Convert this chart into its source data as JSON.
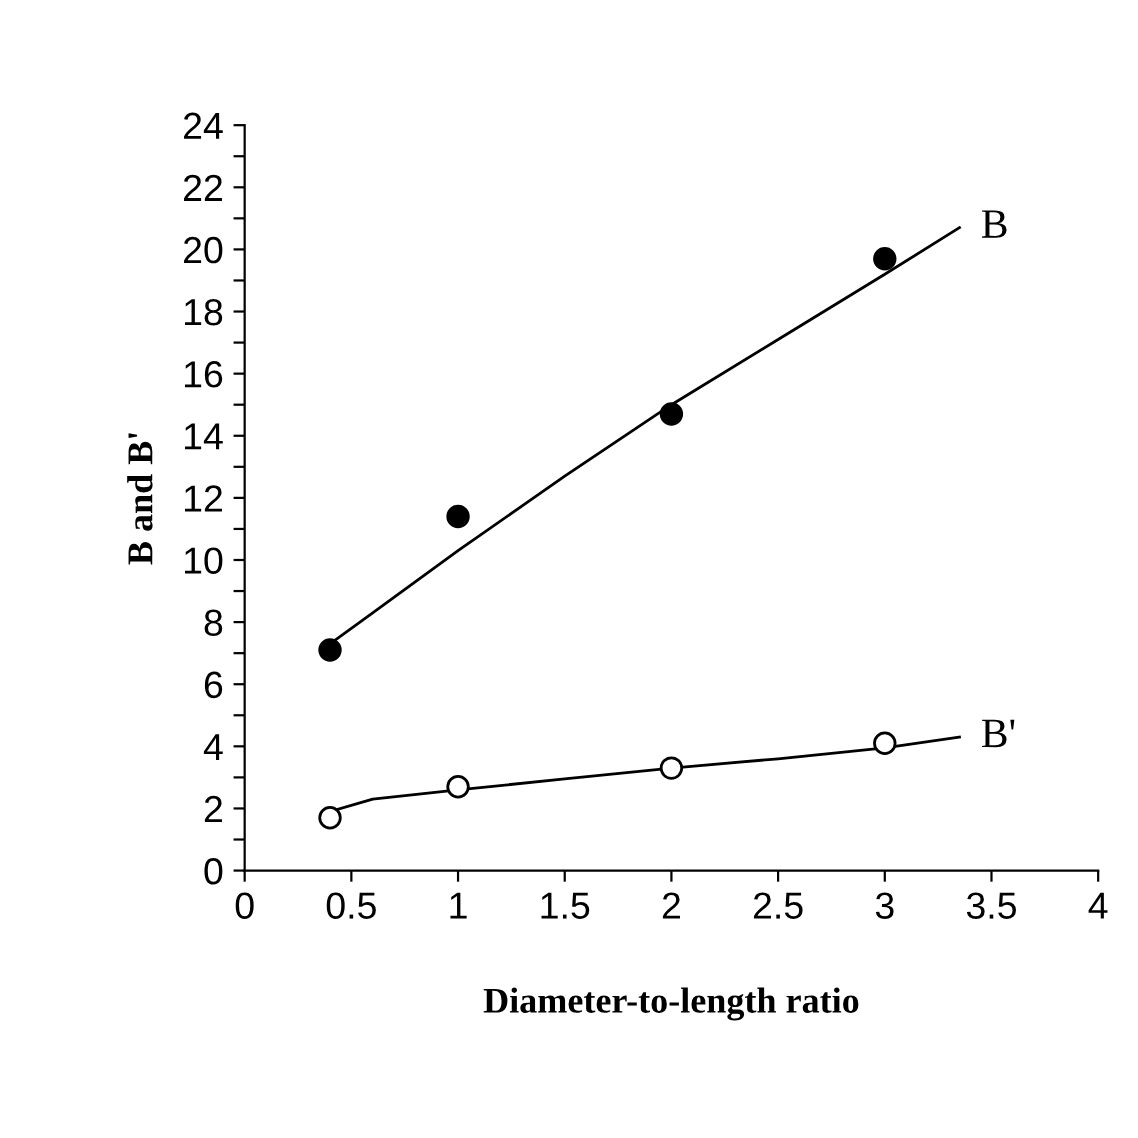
{
  "chart_data": {
    "type": "scatter",
    "xlabel": "Diameter-to-length ratio",
    "ylabel": "B and B'",
    "xlim": [
      0,
      4
    ],
    "xticks": [
      0,
      0.5,
      1,
      1.5,
      2,
      2.5,
      3,
      3.5,
      4
    ],
    "ylim": [
      0,
      24
    ],
    "yticks": [
      0,
      {
        "value": 1,
        "label": null
      },
      2,
      {
        "value": 3,
        "label": null
      },
      4,
      {
        "value": 5,
        "label": null
      },
      6,
      {
        "value": 7,
        "label": null
      },
      8,
      {
        "value": 9,
        "label": null
      },
      10,
      {
        "value": 11,
        "label": null
      },
      12,
      {
        "value": 13,
        "label": null
      },
      14,
      {
        "value": 15,
        "label": null
      },
      16,
      {
        "value": 17,
        "label": null
      },
      18,
      {
        "value": 19,
        "label": null
      },
      20,
      {
        "value": 21,
        "label": null
      },
      22,
      {
        "value": 23,
        "label": null
      },
      24
    ],
    "grid": false,
    "legend": false,
    "series": [
      {
        "color": "#000000",
        "marker": "circle",
        "x": [
          0.4,
          1,
          2,
          3
        ],
        "values": [
          7.1,
          11.4,
          14.7,
          19.7
        ]
      },
      {
        "color": "#ffffff",
        "marker": "circle",
        "x": [
          0.4,
          1,
          2,
          3
        ],
        "values": [
          1.7,
          2.7,
          3.3,
          4.1
        ]
      },
      {
        "type": "line",
        "name": "B",
        "color": "#000000",
        "marker": "none",
        "x": [
          0.4,
          0.6,
          1,
          1.5,
          2,
          2.5,
          3,
          3.35
        ],
        "values": [
          7.3,
          8.3,
          10.3,
          12.7,
          15,
          17.1,
          19.2,
          20.7
        ]
      },
      {
        "type": "line",
        "name": "B'",
        "color": "#000000",
        "marker": "none",
        "x": [
          0.4,
          0.6,
          1,
          1.5,
          2,
          2.5,
          3,
          3.35
        ],
        "values": [
          1.9,
          2.3,
          2.6,
          2.95,
          3.3,
          3.6,
          3.95,
          4.3
        ]
      }
    ]
  }
}
